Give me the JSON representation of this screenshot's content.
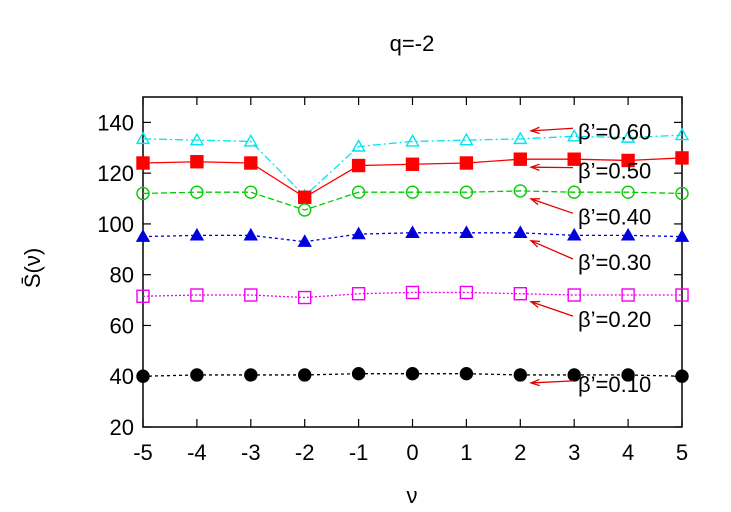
{
  "chart_data": {
    "type": "line",
    "title": "q=-2",
    "xlabel": "ν",
    "ylabel": "S̄(ν)",
    "xlim": [
      -5,
      5
    ],
    "ylim": [
      20,
      150
    ],
    "xticks": [
      -5,
      -4,
      -3,
      -2,
      -1,
      0,
      1,
      2,
      3,
      4,
      5
    ],
    "xtick_labels": [
      "-5",
      "-4",
      "-3",
      "-2",
      "-1",
      "0",
      "1",
      "2",
      "3",
      "4",
      "5"
    ],
    "yticks": [
      20,
      40,
      60,
      80,
      100,
      120,
      140
    ],
    "ytick_labels": [
      "20",
      "40",
      "60",
      "80",
      "100",
      "120",
      "140"
    ],
    "grid": false,
    "x": [
      -5,
      -4,
      -3,
      -2,
      -1,
      0,
      1,
      2,
      3,
      4,
      5
    ],
    "series": [
      {
        "name": "β’=0.60",
        "color": "#00e5ee",
        "marker": "open-triangle",
        "dash": "8,3,2,3",
        "values": [
          133.5,
          133,
          132.5,
          111,
          130.5,
          132.5,
          133,
          133.5,
          134.5,
          134,
          135
        ],
        "annotation_at": 136.5
      },
      {
        "name": "β’=0.50",
        "color": "#ff0000",
        "marker": "filled-square",
        "dash": "",
        "values": [
          124,
          124.5,
          124,
          110.5,
          123,
          123.5,
          124,
          125.5,
          125.5,
          125,
          126
        ],
        "annotation_at": 121
      },
      {
        "name": "β’=0.40",
        "color": "#00cc00",
        "marker": "open-circle",
        "dash": "6,3",
        "values": [
          112,
          112.5,
          112.5,
          105.5,
          112.5,
          112.5,
          112.5,
          113,
          112.5,
          112.5,
          112
        ],
        "annotation_at": 103
      },
      {
        "name": "β’=0.30",
        "color": "#0000dd",
        "marker": "filled-triangle",
        "dash": "3,3",
        "values": [
          95,
          95.5,
          95.5,
          93,
          96,
          96.5,
          96.5,
          96.5,
          95.5,
          95.5,
          95
        ],
        "annotation_at": 85
      },
      {
        "name": "β’=0.20",
        "color": "#ee00ee",
        "marker": "open-square",
        "dash": "2,2",
        "values": [
          71.5,
          72,
          72,
          71,
          72.5,
          73,
          73,
          72.5,
          72,
          72,
          72
        ],
        "annotation_at": 62.5
      },
      {
        "name": "β’=0.10",
        "color": "#000000",
        "marker": "filled-circle",
        "dash": "3,3",
        "values": [
          40,
          40.5,
          40.5,
          40.5,
          41,
          41,
          41,
          40.5,
          40.5,
          40.5,
          40
        ],
        "annotation_at": 37
      }
    ]
  }
}
